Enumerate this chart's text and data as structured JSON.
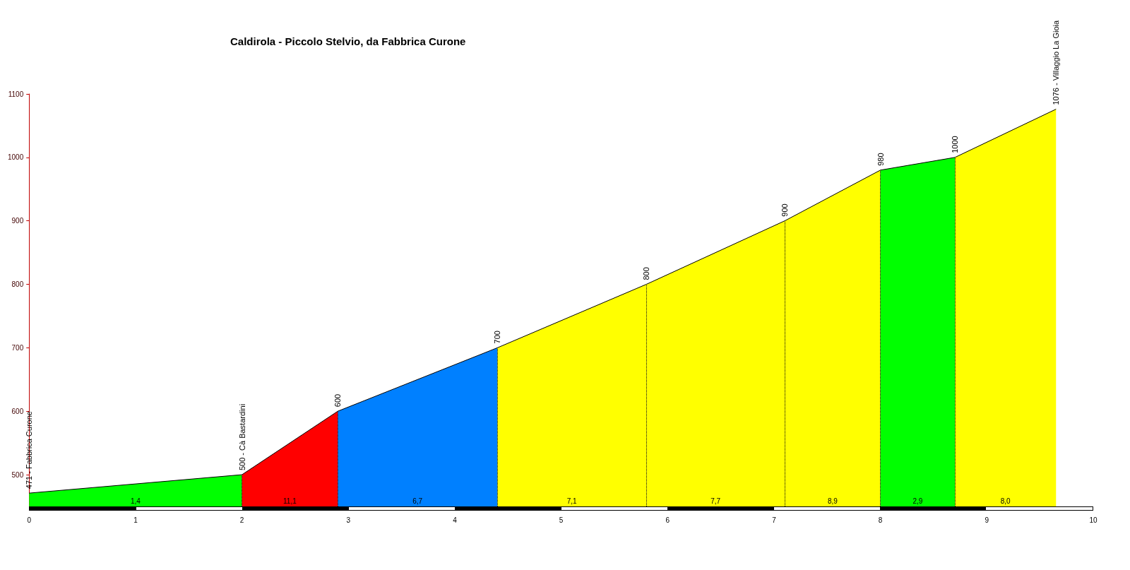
{
  "chart_data": {
    "type": "area",
    "title": "Caldirola - Piccolo Stelvio, da Fabbrica Curone",
    "series": [
      {
        "color": "#00ff00",
        "x": [
          0,
          2.0
        ],
        "values": [
          471,
          500
        ],
        "value_labels": [
          "471 - Fabbrica Curone",
          "500 - Cà Bastardini"
        ]
      },
      {
        "color": "#ff0000",
        "x": [
          2.0,
          2.9
        ],
        "values": [
          500,
          600
        ],
        "value_labels": [
          null,
          "600"
        ]
      },
      {
        "color": "#0080ff",
        "x": [
          2.9,
          4.4
        ],
        "values": [
          600,
          700
        ],
        "value_labels": [
          null,
          "700"
        ]
      },
      {
        "color": "#ffff00",
        "x": [
          4.4,
          5.8
        ],
        "values": [
          700,
          800
        ],
        "value_labels": [
          null,
          "800"
        ]
      },
      {
        "color": "#ffff00",
        "x": [
          5.8,
          7.1
        ],
        "values": [
          800,
          900
        ],
        "value_labels": [
          null,
          "900"
        ]
      },
      {
        "color": "#ffff00",
        "x": [
          7.1,
          8.0
        ],
        "values": [
          900,
          980
        ],
        "value_labels": [
          null,
          "980"
        ]
      },
      {
        "color": "#00ff00",
        "x": [
          8.0,
          8.7
        ],
        "values": [
          980,
          1000
        ],
        "value_labels": [
          null,
          "1000"
        ]
      },
      {
        "color": "#ffff00",
        "x": [
          8.7,
          9.65
        ],
        "values": [
          1000,
          1076
        ],
        "value_labels": [
          null,
          "1076 - Villaggio La Gioia"
        ]
      }
    ],
    "annotations": [
      "1,4",
      "11,1",
      "6,7",
      "7,1",
      "7,7",
      "8,9",
      "2,9",
      "8,0"
    ],
    "xlim": [
      0,
      10
    ],
    "xticks": [
      0,
      1,
      2,
      3,
      4,
      5,
      6,
      7,
      8,
      9,
      10
    ],
    "ylim": [
      450,
      1100
    ],
    "yticks": [
      500,
      600,
      700,
      800,
      900,
      1000,
      1100
    ]
  }
}
